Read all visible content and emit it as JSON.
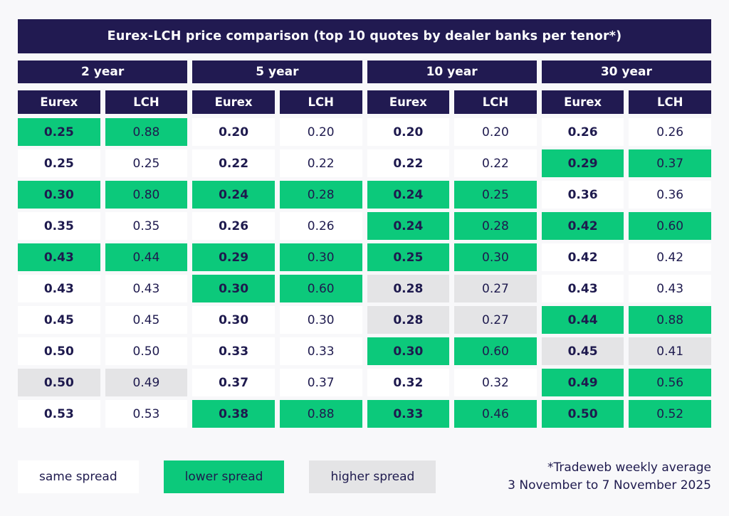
{
  "chart_data": {
    "type": "table",
    "title": "Eurex-LCH price comparison (top 10 quotes by dealer banks per tenor*)",
    "column_headers": [
      "Eurex",
      "LCH"
    ],
    "status_legend_note": "status per row: same = same spread, lower = lower spread, higher = higher spread",
    "groups": [
      {
        "tenor": "2 year",
        "rows": [
          {
            "eurex": "0.25",
            "lch": "0.88",
            "status": "lower"
          },
          {
            "eurex": "0.25",
            "lch": "0.25",
            "status": "same"
          },
          {
            "eurex": "0.30",
            "lch": "0.80",
            "status": "lower"
          },
          {
            "eurex": "0.35",
            "lch": "0.35",
            "status": "same"
          },
          {
            "eurex": "0.43",
            "lch": "0.44",
            "status": "lower"
          },
          {
            "eurex": "0.43",
            "lch": "0.43",
            "status": "same"
          },
          {
            "eurex": "0.45",
            "lch": "0.45",
            "status": "same"
          },
          {
            "eurex": "0.50",
            "lch": "0.50",
            "status": "same"
          },
          {
            "eurex": "0.50",
            "lch": "0.49",
            "status": "higher"
          },
          {
            "eurex": "0.53",
            "lch": "0.53",
            "status": "same"
          }
        ]
      },
      {
        "tenor": "5 year",
        "rows": [
          {
            "eurex": "0.20",
            "lch": "0.20",
            "status": "same"
          },
          {
            "eurex": "0.22",
            "lch": "0.22",
            "status": "same"
          },
          {
            "eurex": "0.24",
            "lch": "0.28",
            "status": "lower"
          },
          {
            "eurex": "0.26",
            "lch": "0.26",
            "status": "same"
          },
          {
            "eurex": "0.29",
            "lch": "0.30",
            "status": "lower"
          },
          {
            "eurex": "0.30",
            "lch": "0.60",
            "status": "lower"
          },
          {
            "eurex": "0.30",
            "lch": "0.30",
            "status": "same"
          },
          {
            "eurex": "0.33",
            "lch": "0.33",
            "status": "same"
          },
          {
            "eurex": "0.37",
            "lch": "0.37",
            "status": "same"
          },
          {
            "eurex": "0.38",
            "lch": "0.88",
            "status": "lower"
          }
        ]
      },
      {
        "tenor": "10 year",
        "rows": [
          {
            "eurex": "0.20",
            "lch": "0.20",
            "status": "same"
          },
          {
            "eurex": "0.22",
            "lch": "0.22",
            "status": "same"
          },
          {
            "eurex": "0.24",
            "lch": "0.25",
            "status": "lower"
          },
          {
            "eurex": "0.24",
            "lch": "0.28",
            "status": "lower"
          },
          {
            "eurex": "0.25",
            "lch": "0.30",
            "status": "lower"
          },
          {
            "eurex": "0.28",
            "lch": "0.27",
            "status": "higher"
          },
          {
            "eurex": "0.28",
            "lch": "0.27",
            "status": "higher"
          },
          {
            "eurex": "0.30",
            "lch": "0.60",
            "status": "lower"
          },
          {
            "eurex": "0.32",
            "lch": "0.32",
            "status": "same"
          },
          {
            "eurex": "0.33",
            "lch": "0.46",
            "status": "lower"
          }
        ]
      },
      {
        "tenor": "30 year",
        "rows": [
          {
            "eurex": "0.26",
            "lch": "0.26",
            "status": "same"
          },
          {
            "eurex": "0.29",
            "lch": "0.37",
            "status": "lower"
          },
          {
            "eurex": "0.36",
            "lch": "0.36",
            "status": "same"
          },
          {
            "eurex": "0.42",
            "lch": "0.60",
            "status": "lower"
          },
          {
            "eurex": "0.42",
            "lch": "0.42",
            "status": "same"
          },
          {
            "eurex": "0.43",
            "lch": "0.43",
            "status": "same"
          },
          {
            "eurex": "0.44",
            "lch": "0.88",
            "status": "lower"
          },
          {
            "eurex": "0.45",
            "lch": "0.41",
            "status": "higher"
          },
          {
            "eurex": "0.49",
            "lch": "0.56",
            "status": "lower"
          },
          {
            "eurex": "0.50",
            "lch": "0.52",
            "status": "lower"
          }
        ]
      }
    ],
    "legend": [
      {
        "label": "same spread",
        "status": "same"
      },
      {
        "label": "lower spread",
        "status": "lower"
      },
      {
        "label": "higher spread",
        "status": "higher"
      }
    ],
    "footnote_line1": "*Tradeweb weekly average",
    "footnote_line2": "3 November to 7 November 2025"
  },
  "colors": {
    "navy": "#211a51",
    "green": "#0cc97b",
    "gray_cell": "#e4e4e6",
    "cell_white": "#ffffff",
    "page_bg": "#f8f8fa",
    "text_navy": "#1e1a4e"
  }
}
